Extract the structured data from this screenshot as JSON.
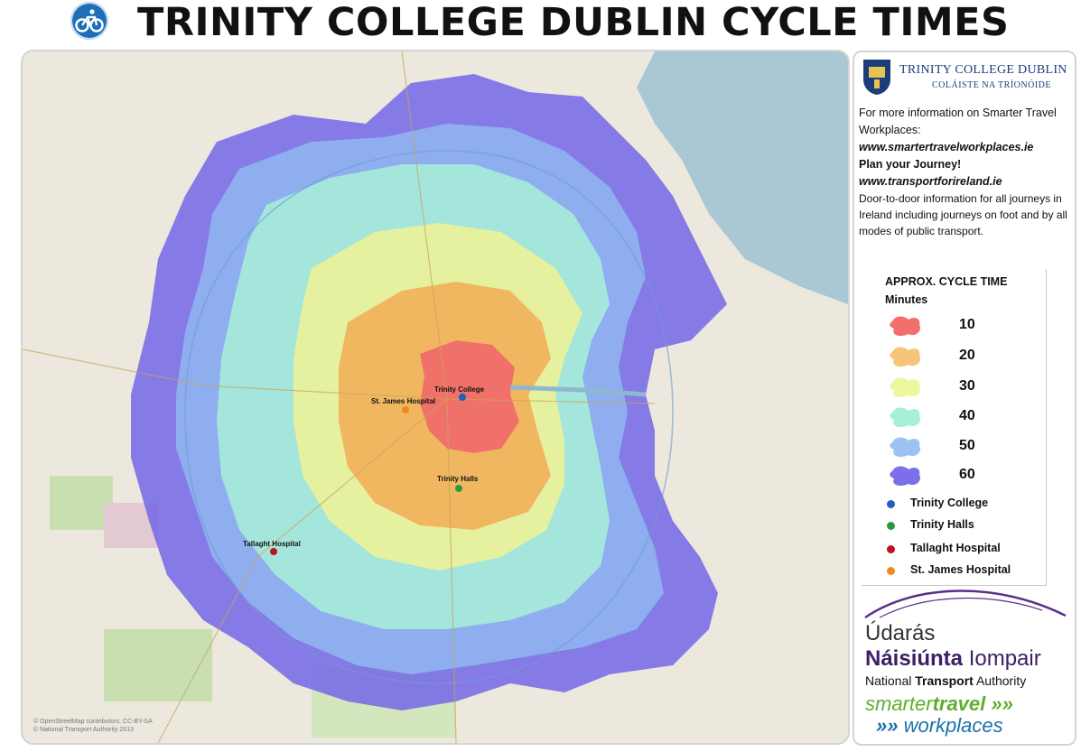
{
  "header": {
    "title": "TRINITY COLLEGE DUBLIN CYCLE TIMES",
    "icon": "bicycle-icon"
  },
  "map": {
    "attribution_1": "© OpenStreetMap contributors, CC-BY-SA",
    "attribution_2": "© National Transport Authority 2013",
    "points": [
      {
        "label": "Trinity College",
        "color": "#1f5fbf"
      },
      {
        "label": "St. James Hospital",
        "color": "#f08a1c"
      },
      {
        "label": "Trinity Halls",
        "color": "#2a9a3a"
      },
      {
        "label": "Tallaght Hospital",
        "color": "#c0141c"
      }
    ],
    "zones": [
      {
        "minutes": 60,
        "color": "#7466e8"
      },
      {
        "minutes": 50,
        "color": "#8fb5f0"
      },
      {
        "minutes": 40,
        "color": "#a6ecd8"
      },
      {
        "minutes": 30,
        "color": "#eaf29a"
      },
      {
        "minutes": 20,
        "color": "#f2b25a"
      },
      {
        "minutes": 10,
        "color": "#f06a6a"
      }
    ]
  },
  "panel": {
    "tcd_name": "TRINITY COLLEGE DUBLIN",
    "tcd_irish": "COLÁISTE NA TRÍONÓIDE",
    "info_line1": "For more information on Smarter Travel Workplaces:",
    "url1": "www.smartertravelworkplaces.ie",
    "plan": "Plan your Journey!",
    "url2": "www.transportforireland.ie",
    "info_line2": "Door-to-door information for all journeys in Ireland including journeys on foot and by all modes of public transport.",
    "legend_title_1": "APPROX. CYCLE TIME",
    "legend_title_2": "Minutes",
    "legend": [
      {
        "minutes": "10",
        "color": "#f46e6e"
      },
      {
        "minutes": "20",
        "color": "#f7c47a"
      },
      {
        "minutes": "30",
        "color": "#eef69e"
      },
      {
        "minutes": "40",
        "color": "#a7f0d8"
      },
      {
        "minutes": "50",
        "color": "#9cc2f4"
      },
      {
        "minutes": "60",
        "color": "#7b6fea"
      }
    ],
    "poi_legend": [
      {
        "label": "Trinity College",
        "color": "#1f5fbf"
      },
      {
        "label": "Trinity Halls",
        "color": "#2a9a3a"
      },
      {
        "label": "Tallaght Hospital",
        "color": "#c0141c"
      },
      {
        "label": "St. James Hospital",
        "color": "#f08a1c"
      }
    ],
    "nta_1": "Údarás",
    "nta_2a": "Náisiúnta",
    "nta_2b": " Iompair",
    "nta_3a": "National ",
    "nta_3b": "Transport",
    "nta_3c": " Authority",
    "stw_1a": "smarter",
    "stw_1b": "travel »»",
    "stw_2a": "»» ",
    "stw_2b": "workplaces"
  }
}
